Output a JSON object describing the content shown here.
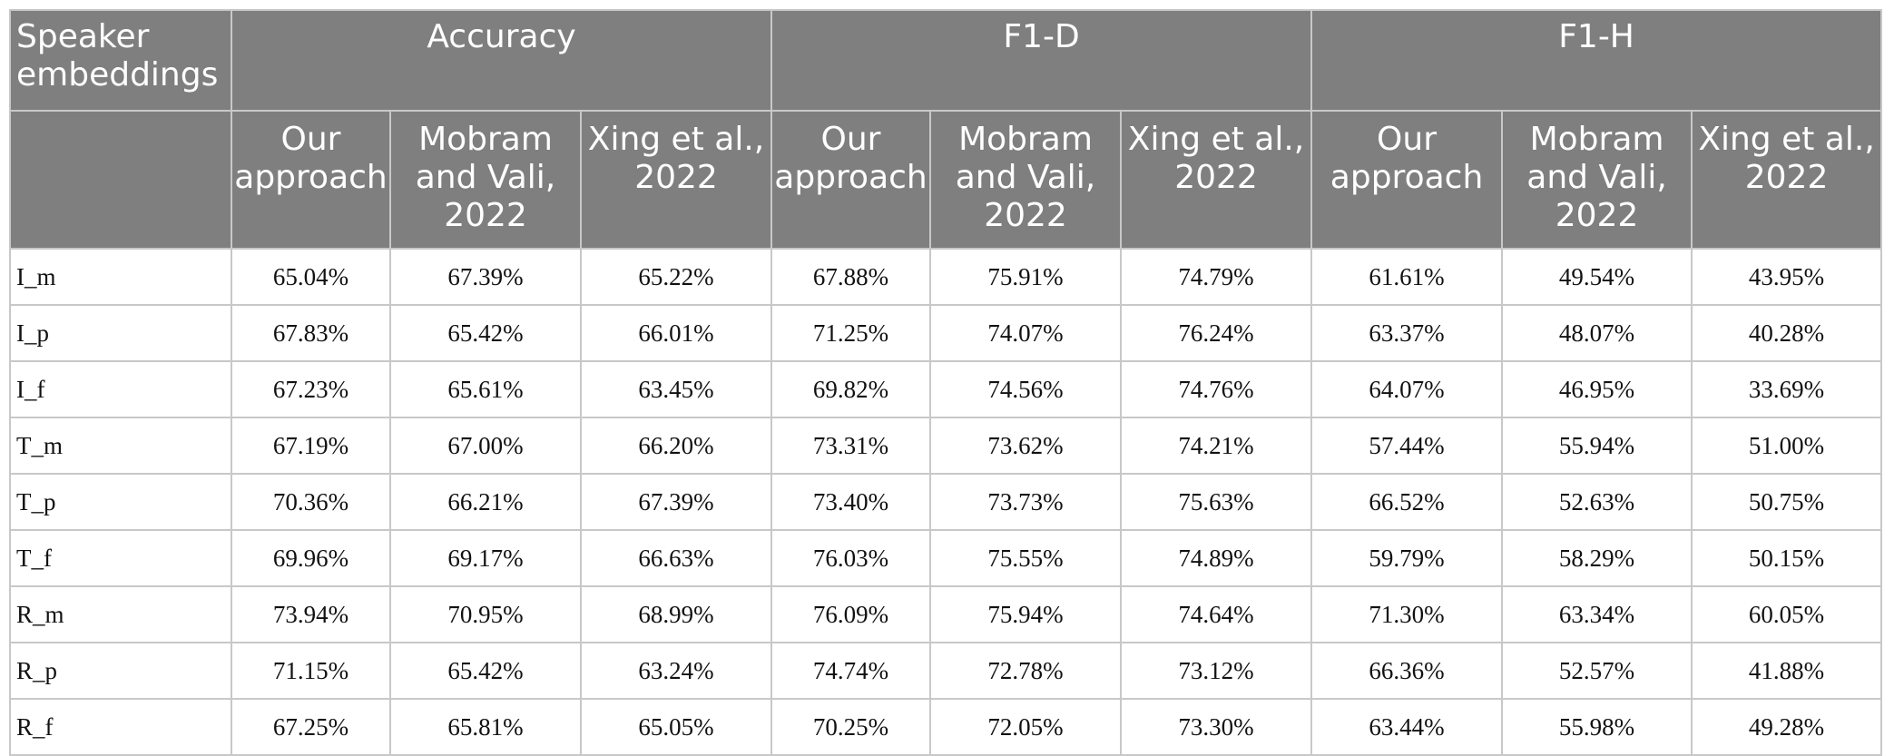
{
  "table": {
    "corner_label": "Speaker embeddings",
    "groups": [
      "Accuracy",
      "F1-D",
      "F1-H"
    ],
    "subheaders": [
      "Our approach",
      "Mobram and Vali, 2022",
      "Xing et al., 2022",
      "Our approach",
      "Mobram and Vali, 2022",
      "Xing et al., 2022",
      "Our approach",
      "Mobram and Vali, 2022",
      "Xing et al., 2022"
    ],
    "rows": [
      {
        "label": "I_m",
        "values": [
          "65.04%",
          "67.39%",
          "65.22%",
          "67.88%",
          "75.91%",
          "74.79%",
          "61.61%",
          "49.54%",
          "43.95%"
        ]
      },
      {
        "label": "I_p",
        "values": [
          "67.83%",
          "65.42%",
          "66.01%",
          "71.25%",
          "74.07%",
          "76.24%",
          "63.37%",
          "48.07%",
          "40.28%"
        ]
      },
      {
        "label": "I_f",
        "values": [
          "67.23%",
          "65.61%",
          "63.45%",
          "69.82%",
          "74.56%",
          "74.76%",
          "64.07%",
          "46.95%",
          "33.69%"
        ]
      },
      {
        "label": "T_m",
        "values": [
          "67.19%",
          "67.00%",
          "66.20%",
          "73.31%",
          "73.62%",
          "74.21%",
          "57.44%",
          "55.94%",
          "51.00%"
        ]
      },
      {
        "label": "T_p",
        "values": [
          "70.36%",
          "66.21%",
          "67.39%",
          "73.40%",
          "73.73%",
          "75.63%",
          "66.52%",
          "52.63%",
          "50.75%"
        ]
      },
      {
        "label": "T_f",
        "values": [
          "69.96%",
          "69.17%",
          "66.63%",
          "76.03%",
          "75.55%",
          "74.89%",
          "59.79%",
          "58.29%",
          "50.15%"
        ]
      },
      {
        "label": "R_m",
        "values": [
          "73.94%",
          "70.95%",
          "68.99%",
          "76.09%",
          "75.94%",
          "74.64%",
          "71.30%",
          "63.34%",
          "60.05%"
        ]
      },
      {
        "label": "R_p",
        "values": [
          "71.15%",
          "65.42%",
          "63.24%",
          "74.74%",
          "72.78%",
          "73.12%",
          "66.36%",
          "52.57%",
          "41.88%"
        ]
      },
      {
        "label": "R_f",
        "values": [
          "67.25%",
          "65.81%",
          "65.05%",
          "70.25%",
          "72.05%",
          "73.30%",
          "63.44%",
          "55.98%",
          "49.28%"
        ]
      }
    ]
  },
  "colors": {
    "header_bg": "#7f7f7f",
    "header_text": "#ffffff",
    "grid": "#c8c8c8"
  }
}
